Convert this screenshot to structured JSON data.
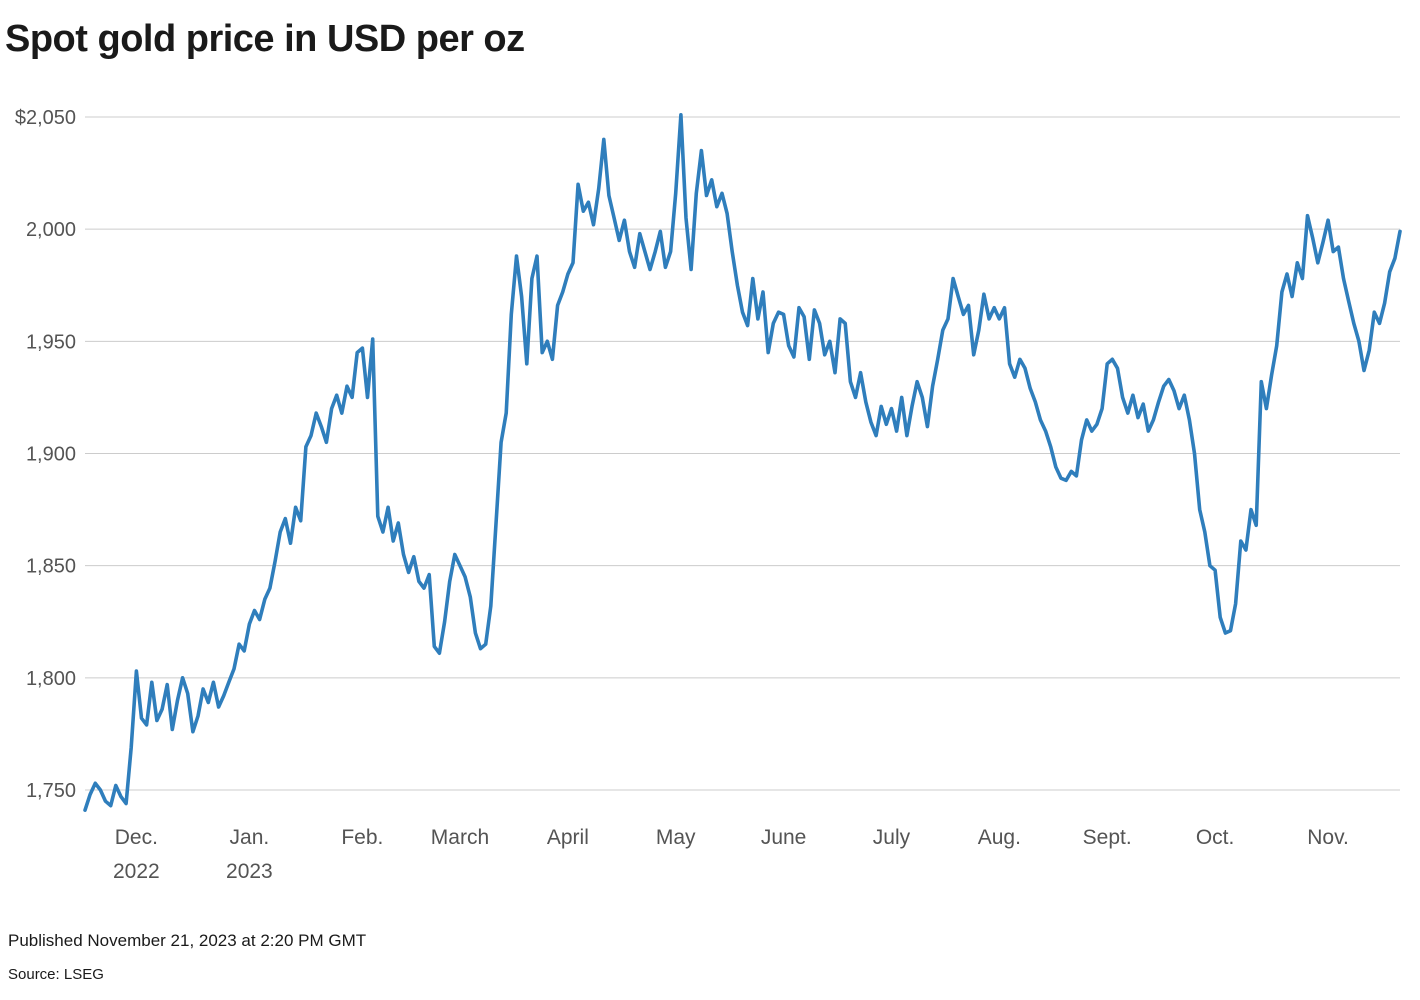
{
  "title": "Spot gold price in USD per oz",
  "footer": {
    "published": "Published November 21, 2023 at 2:20 PM GMT",
    "source": "Source: LSEG"
  },
  "chart_data": {
    "type": "line",
    "title": "Spot gold price in USD per oz",
    "series_name": "Spot gold price (USD per oz)",
    "line_color": "#2f7ebc",
    "grid_color": "#cccccc",
    "label_color": "#545454",
    "ylim": [
      1750,
      2050
    ],
    "grid": true,
    "y_ticks": [
      {
        "value": 2050,
        "label": "$2,050"
      },
      {
        "value": 2000,
        "label": "2,000"
      },
      {
        "value": 1950,
        "label": "1,950"
      },
      {
        "value": 1900,
        "label": "1,900"
      },
      {
        "value": 1850,
        "label": "1,850"
      },
      {
        "value": 1800,
        "label": "1,800"
      },
      {
        "value": 1750,
        "label": "1,750"
      }
    ],
    "x_ticks": [
      {
        "index": 10,
        "label": "Dec.",
        "sublabel": "2022"
      },
      {
        "index": 32,
        "label": "Jan.",
        "sublabel": "2023"
      },
      {
        "index": 54,
        "label": "Feb.",
        "sublabel": ""
      },
      {
        "index": 73,
        "label": "March",
        "sublabel": ""
      },
      {
        "index": 94,
        "label": "April",
        "sublabel": ""
      },
      {
        "index": 115,
        "label": "May",
        "sublabel": ""
      },
      {
        "index": 136,
        "label": "June",
        "sublabel": ""
      },
      {
        "index": 157,
        "label": "July",
        "sublabel": ""
      },
      {
        "index": 178,
        "label": "Aug.",
        "sublabel": ""
      },
      {
        "index": 199,
        "label": "Sept.",
        "sublabel": ""
      },
      {
        "index": 220,
        "label": "Oct.",
        "sublabel": ""
      },
      {
        "index": 242,
        "label": "Nov.",
        "sublabel": ""
      }
    ],
    "values": [
      1741,
      1748,
      1753,
      1750,
      1745,
      1743,
      1752,
      1747,
      1744,
      1769,
      1803,
      1782,
      1779,
      1798,
      1781,
      1786,
      1797,
      1777,
      1790,
      1800,
      1793,
      1776,
      1783,
      1795,
      1789,
      1798,
      1787,
      1792,
      1798,
      1804,
      1815,
      1812,
      1824,
      1830,
      1826,
      1835,
      1840,
      1852,
      1865,
      1871,
      1860,
      1876,
      1870,
      1903,
      1908,
      1918,
      1912,
      1905,
      1920,
      1926,
      1918,
      1930,
      1925,
      1945,
      1947,
      1925,
      1951,
      1872,
      1865,
      1876,
      1861,
      1869,
      1855,
      1847,
      1854,
      1843,
      1840,
      1846,
      1814,
      1811,
      1825,
      1843,
      1855,
      1850,
      1845,
      1836,
      1820,
      1813,
      1815,
      1832,
      1868,
      1905,
      1918,
      1962,
      1988,
      1970,
      1940,
      1978,
      1988,
      1945,
      1950,
      1942,
      1966,
      1972,
      1980,
      1985,
      2020,
      2008,
      2012,
      2002,
      2018,
      2040,
      2015,
      2005,
      1995,
      2004,
      1990,
      1983,
      1998,
      1990,
      1982,
      1990,
      1999,
      1983,
      1990,
      2016,
      2051,
      2005,
      1982,
      2016,
      2035,
      2015,
      2022,
      2010,
      2016,
      2007,
      1990,
      1975,
      1963,
      1957,
      1978,
      1960,
      1972,
      1945,
      1958,
      1963,
      1962,
      1948,
      1943,
      1965,
      1961,
      1942,
      1964,
      1958,
      1944,
      1950,
      1936,
      1960,
      1958,
      1932,
      1925,
      1936,
      1923,
      1914,
      1908,
      1921,
      1913,
      1920,
      1910,
      1925,
      1908,
      1921,
      1932,
      1925,
      1912,
      1930,
      1942,
      1955,
      1960,
      1978,
      1970,
      1962,
      1966,
      1944,
      1955,
      1971,
      1960,
      1965,
      1960,
      1965,
      1940,
      1934,
      1942,
      1938,
      1929,
      1923,
      1915,
      1910,
      1903,
      1894,
      1889,
      1888,
      1892,
      1890,
      1906,
      1915,
      1910,
      1913,
      1920,
      1940,
      1942,
      1938,
      1925,
      1918,
      1926,
      1916,
      1922,
      1910,
      1915,
      1923,
      1930,
      1933,
      1928,
      1920,
      1926,
      1915,
      1900,
      1875,
      1865,
      1850,
      1848,
      1827,
      1820,
      1821,
      1833,
      1861,
      1857,
      1875,
      1868,
      1932,
      1920,
      1935,
      1948,
      1972,
      1980,
      1970,
      1985,
      1978,
      2006,
      1996,
      1985,
      1994,
      2004,
      1990,
      1992,
      1978,
      1968,
      1958,
      1950,
      1937,
      1946,
      1963,
      1958,
      1967,
      1981,
      1987,
      1999
    ]
  }
}
